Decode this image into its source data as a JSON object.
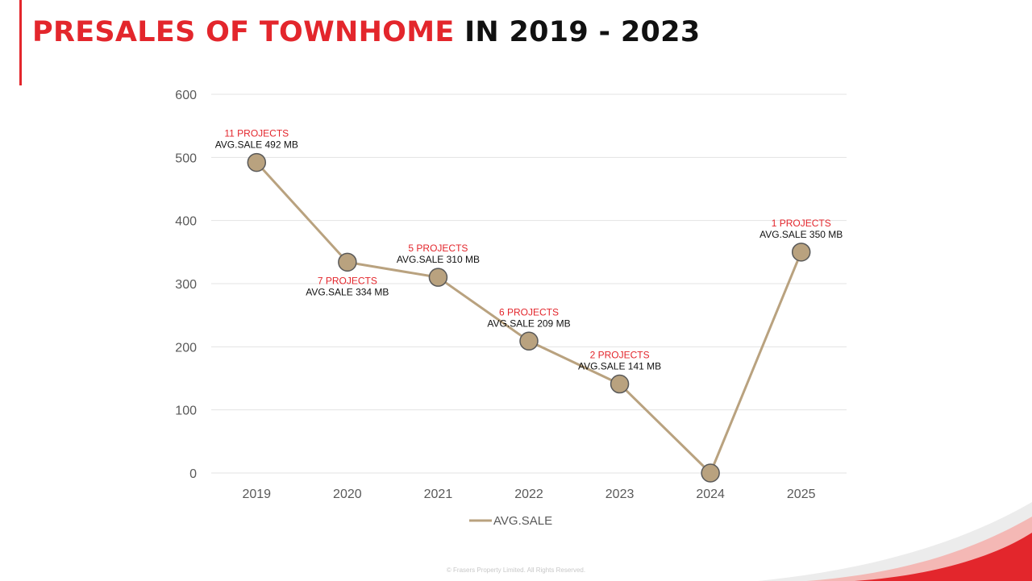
{
  "slide": {
    "title_red": "PRESALES OF TOWNHOME",
    "title_black": " IN 2019 - 2023",
    "footer": "© Frasers Property Limited. All Rights Reserved.",
    "accent_color": "#e3262c"
  },
  "chart_data": {
    "type": "line",
    "x": [
      "2019",
      "2020",
      "2021",
      "2022",
      "2023",
      "2024",
      "2025"
    ],
    "ylim": [
      0,
      600
    ],
    "yticks": [
      0,
      100,
      200,
      300,
      400,
      500,
      600
    ],
    "grid": true,
    "legend_position": "bottom-center",
    "series": [
      {
        "name": "AVG.SALE",
        "color": "#b9a27f",
        "values": [
          492,
          334,
          310,
          209,
          141,
          0,
          350
        ]
      }
    ],
    "annotations": [
      {
        "x": "2019",
        "projects": "11 PROJECTS",
        "avg": "AVG.SALE 492 MB"
      },
      {
        "x": "2020",
        "projects": "7 PROJECTS",
        "avg": "AVG.SALE 334 MB"
      },
      {
        "x": "2021",
        "projects": "5 PROJECTS",
        "avg": "AVG.SALE 310 MB"
      },
      {
        "x": "2022",
        "projects": "6 PROJECTS",
        "avg": "AVG.SALE 209 MB"
      },
      {
        "x": "2023",
        "projects": "2 PROJECTS",
        "avg": "AVG.SALE 141 MB"
      },
      {
        "x": "2025",
        "projects": "1 PROJECTS",
        "avg": "AVG.SALE 350 MB"
      }
    ],
    "annotation_colors": {
      "projects": "#e3262c",
      "avg": "#111111"
    }
  }
}
